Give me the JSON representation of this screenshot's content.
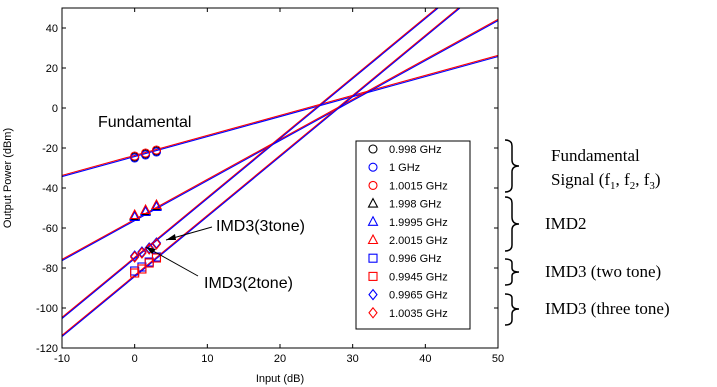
{
  "chart_data": {
    "type": "line",
    "xlabel": "Input (dB)",
    "ylabel": "Output Power (dBm)",
    "xlim": [
      -10,
      50
    ],
    "ylim": [
      -120,
      50
    ],
    "x_ticks": [
      -10,
      0,
      10,
      20,
      30,
      40,
      50
    ],
    "y_ticks": [
      -120,
      -100,
      -80,
      -60,
      -40,
      -20,
      0,
      20,
      40
    ],
    "grid": false,
    "legend_position": "inside-lower-right",
    "series": [
      {
        "name": "0.998 GHz",
        "marker": "circle",
        "color": "#000000",
        "group": "fundamental",
        "points": [
          [
            0,
            -24.5
          ],
          [
            1.5,
            -23
          ],
          [
            3,
            -21.5
          ]
        ]
      },
      {
        "name": "1 GHz",
        "marker": "circle",
        "color": "#0000ff",
        "group": "fundamental",
        "points": [
          [
            0,
            -25
          ],
          [
            1.5,
            -23.5
          ],
          [
            3,
            -22
          ]
        ]
      },
      {
        "name": "1.0015 GHz",
        "marker": "circle",
        "color": "#ff0000",
        "group": "fundamental",
        "points": [
          [
            0,
            -24
          ],
          [
            1.5,
            -22.5
          ],
          [
            3,
            -21
          ]
        ]
      },
      {
        "name": "1.998 GHz",
        "marker": "triangle",
        "color": "#000000",
        "group": "imd2",
        "points": [
          [
            0,
            -54
          ],
          [
            1.5,
            -51.5
          ],
          [
            3,
            -49
          ]
        ]
      },
      {
        "name": "1.9995 GHz",
        "marker": "triangle",
        "color": "#0000ff",
        "group": "imd2",
        "points": [
          [
            0,
            -54.5
          ],
          [
            1.5,
            -52
          ],
          [
            3,
            -49.5
          ]
        ]
      },
      {
        "name": "2.0015 GHz",
        "marker": "triangle",
        "color": "#ff0000",
        "group": "imd2",
        "points": [
          [
            0,
            -53.5
          ],
          [
            1.5,
            -51
          ],
          [
            3,
            -48.5
          ]
        ]
      },
      {
        "name": "0.996 GHz",
        "marker": "square",
        "color": "#0000ff",
        "group": "imd3-2tone",
        "points": [
          [
            0,
            -81.5
          ],
          [
            1,
            -79.5
          ],
          [
            2,
            -77
          ],
          [
            3,
            -74.5
          ]
        ]
      },
      {
        "name": "0.9945 GHz",
        "marker": "square",
        "color": "#ff0000",
        "group": "imd3-2tone",
        "points": [
          [
            0,
            -82.5
          ],
          [
            1,
            -80.5
          ],
          [
            2,
            -77.5
          ],
          [
            3,
            -75
          ]
        ]
      },
      {
        "name": "0.9965 GHz",
        "marker": "diamond",
        "color": "#0000ff",
        "group": "imd3-3tone",
        "points": [
          [
            0,
            -74
          ],
          [
            1,
            -72
          ],
          [
            2,
            -70
          ],
          [
            3,
            -67.5
          ]
        ]
      },
      {
        "name": "1.0035 GHz",
        "marker": "diamond",
        "color": "#ff0000",
        "group": "imd3-3tone",
        "points": [
          [
            0,
            -74.5
          ],
          [
            1,
            -72.5
          ],
          [
            2,
            -70.5
          ],
          [
            3,
            -68
          ]
        ]
      }
    ],
    "fit_lines": [
      {
        "group": "fundamental",
        "slope": 1,
        "intercept": -24,
        "colors": [
          "#ff0000",
          "#0000ff"
        ]
      },
      {
        "group": "imd2",
        "slope": 2,
        "intercept": -56,
        "colors": [
          "#ff0000",
          "#0000ff"
        ]
      },
      {
        "group": "imd3-3tone",
        "slope": 3,
        "intercept": -75,
        "colors": [
          "#ff0000",
          "#0000ff"
        ]
      },
      {
        "group": "imd3-2tone",
        "slope": 3,
        "intercept": -84,
        "colors": [
          "#ff0000",
          "#0000ff"
        ]
      }
    ],
    "annotations": [
      "Fundamental",
      "IMD3(3tone)",
      "IMD3(2tone)"
    ],
    "brace_labels": [
      {
        "label": "Fundamental",
        "label2": "Signal (f",
        "subs": [
          "1",
          "2",
          "3"
        ]
      },
      {
        "label": "IMD2"
      },
      {
        "label": "IMD3 (two tone)"
      },
      {
        "label": "IMD3 (three tone)"
      }
    ]
  }
}
